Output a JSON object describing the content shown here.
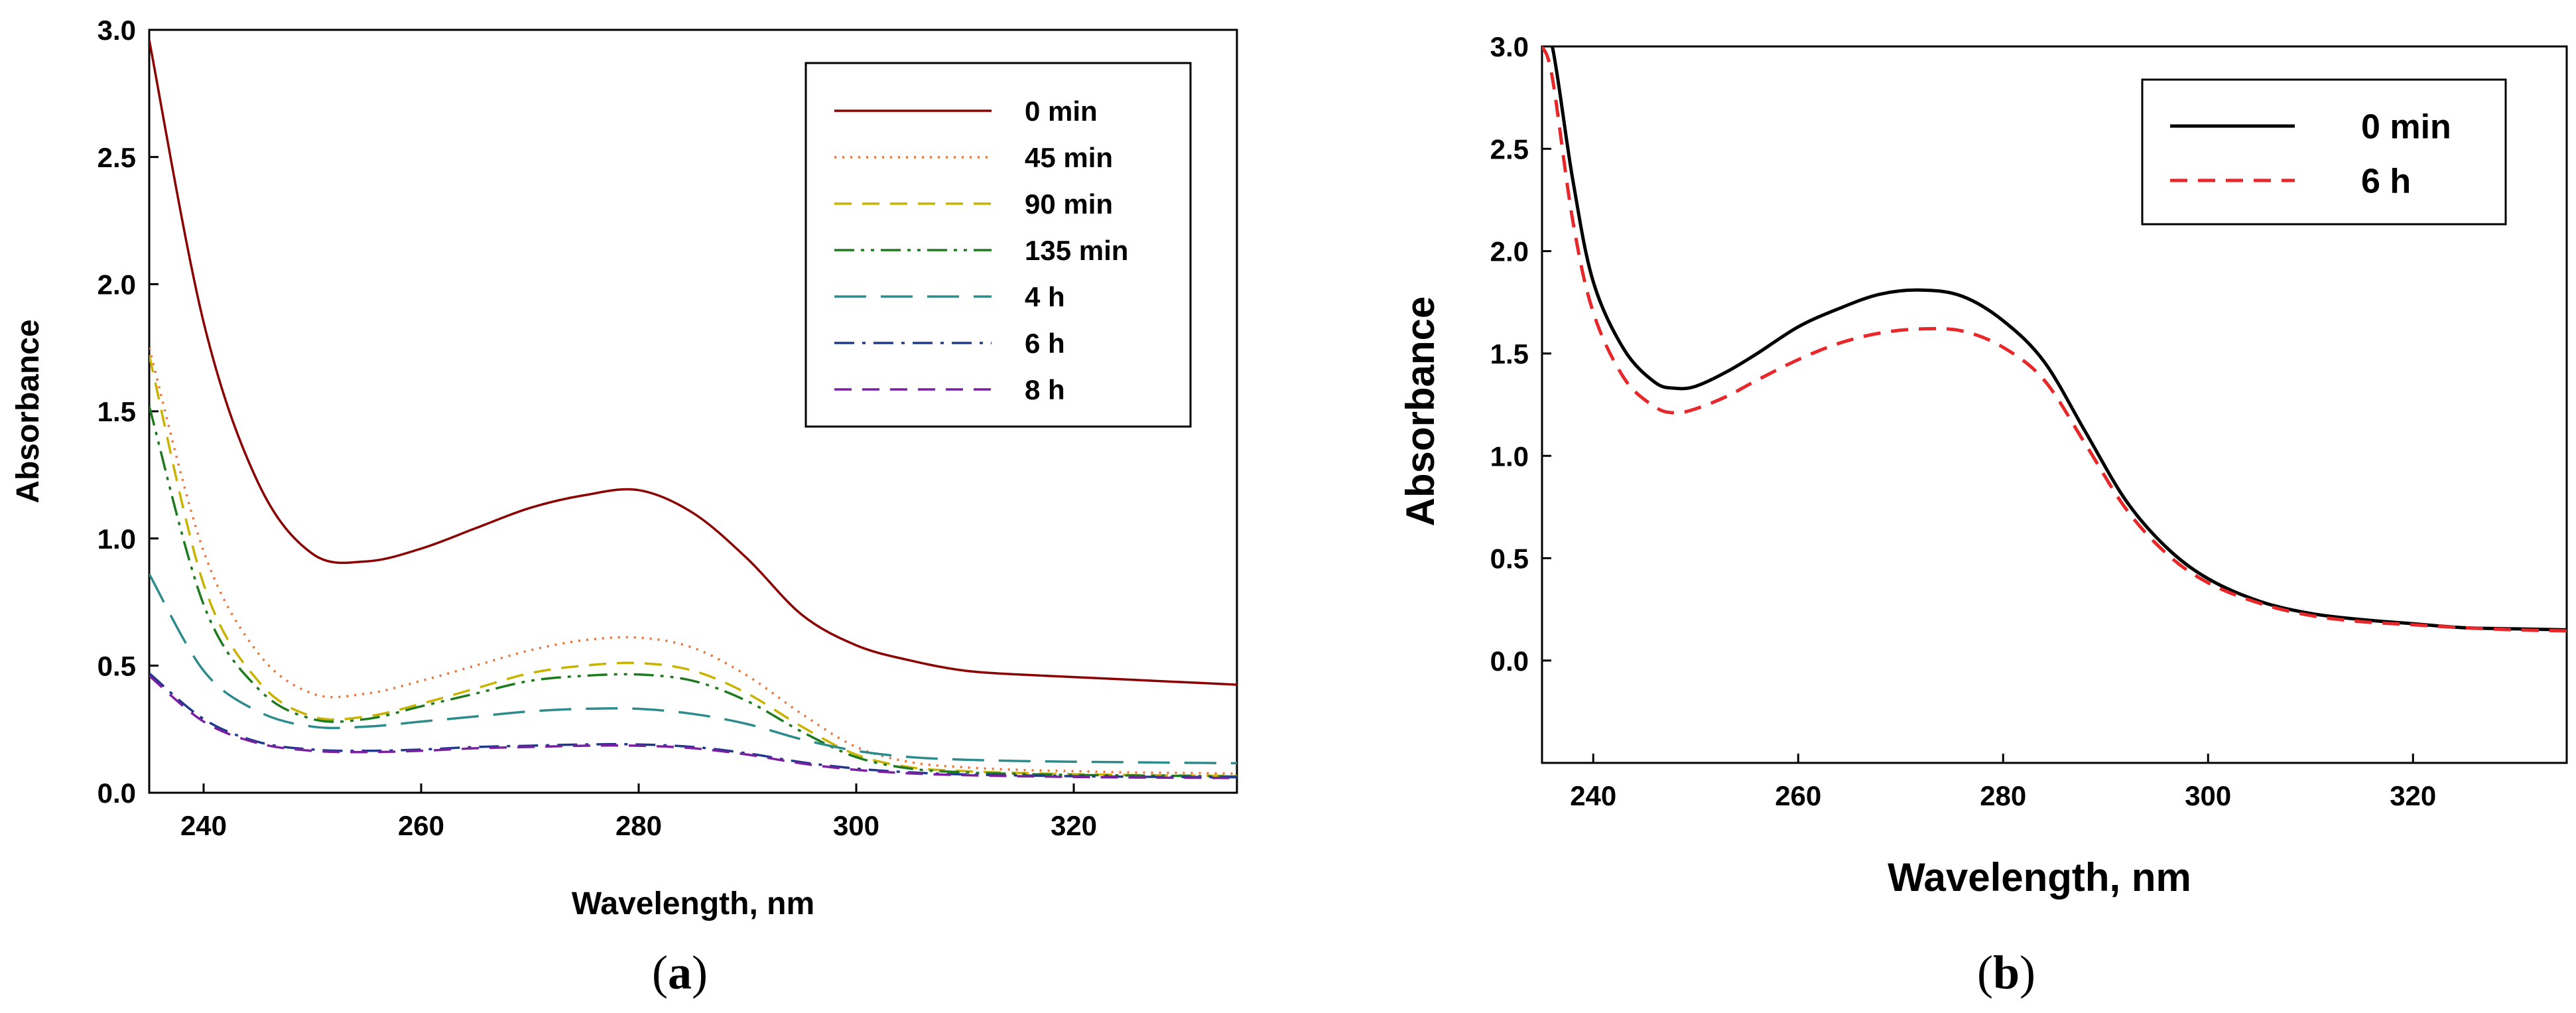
{
  "chart_data": [
    {
      "type": "line",
      "panel_id": "a",
      "panel_label": {
        "open": "(",
        "letter": "a",
        "close": ")"
      },
      "title": "",
      "xlabel": "Wavelength, nm",
      "ylabel": "Absorbance",
      "xlim": [
        235,
        335
      ],
      "ylim": [
        0,
        3.0
      ],
      "x_ticks": [
        240,
        260,
        280,
        300,
        320
      ],
      "y_ticks": [
        0.0,
        0.5,
        1.0,
        1.5,
        2.0,
        2.5,
        3.0
      ],
      "grid": false,
      "legend_position": "top-right",
      "x": [
        235,
        240,
        245,
        250,
        255,
        260,
        265,
        270,
        275,
        280,
        285,
        290,
        295,
        300,
        305,
        310,
        315,
        320,
        325,
        330,
        335
      ],
      "series": [
        {
          "name": "0 min",
          "color": "#8B0000",
          "dash": "solid",
          "values": [
            2.96,
            1.85,
            1.22,
            0.94,
            0.91,
            0.96,
            1.04,
            1.12,
            1.17,
            1.19,
            1.1,
            0.92,
            0.7,
            0.58,
            0.52,
            0.48,
            0.465,
            0.455,
            0.445,
            0.435,
            0.425
          ]
        },
        {
          "name": "45 min",
          "color": "#E8743B",
          "dash": "dotted",
          "values": [
            1.75,
            0.95,
            0.55,
            0.39,
            0.39,
            0.44,
            0.5,
            0.56,
            0.6,
            0.61,
            0.57,
            0.46,
            0.31,
            0.18,
            0.12,
            0.1,
            0.09,
            0.085,
            0.08,
            0.078,
            0.075
          ]
        },
        {
          "name": "90 min",
          "color": "#C8B400",
          "dash": "dashed",
          "values": [
            1.72,
            0.82,
            0.44,
            0.3,
            0.3,
            0.35,
            0.41,
            0.47,
            0.5,
            0.51,
            0.48,
            0.39,
            0.26,
            0.15,
            0.1,
            0.085,
            0.078,
            0.073,
            0.07,
            0.068,
            0.066
          ]
        },
        {
          "name": "135 min",
          "color": "#1E7A1E",
          "dash": "dashdotdot",
          "values": [
            1.52,
            0.74,
            0.41,
            0.29,
            0.29,
            0.34,
            0.39,
            0.44,
            0.46,
            0.465,
            0.44,
            0.36,
            0.24,
            0.14,
            0.095,
            0.08,
            0.074,
            0.07,
            0.068,
            0.066,
            0.064
          ]
        },
        {
          "name": "4 h",
          "color": "#2E8B8B",
          "dash": "longdash",
          "values": [
            0.86,
            0.48,
            0.32,
            0.26,
            0.26,
            0.28,
            0.3,
            0.32,
            0.33,
            0.33,
            0.31,
            0.27,
            0.21,
            0.165,
            0.14,
            0.13,
            0.125,
            0.122,
            0.12,
            0.118,
            0.116
          ]
        },
        {
          "name": "6 h",
          "color": "#1F3A8A",
          "dash": "dashdot",
          "values": [
            0.47,
            0.29,
            0.2,
            0.17,
            0.165,
            0.17,
            0.18,
            0.185,
            0.19,
            0.19,
            0.18,
            0.155,
            0.12,
            0.095,
            0.08,
            0.072,
            0.068,
            0.065,
            0.063,
            0.062,
            0.061
          ]
        },
        {
          "name": "8 h",
          "color": "#7A1FA2",
          "dash": "dashed",
          "values": [
            0.46,
            0.28,
            0.195,
            0.165,
            0.16,
            0.165,
            0.175,
            0.18,
            0.185,
            0.185,
            0.175,
            0.15,
            0.115,
            0.09,
            0.076,
            0.069,
            0.065,
            0.062,
            0.06,
            0.059,
            0.058
          ]
        }
      ]
    },
    {
      "type": "line",
      "panel_id": "b",
      "panel_label": {
        "open": "(",
        "letter": "b",
        "close": ")"
      },
      "title": "",
      "xlabel": "Wavelength, nm",
      "ylabel": "Absorbance",
      "xlim": [
        235,
        335
      ],
      "ylim": [
        -0.5,
        3.0
      ],
      "x_ticks": [
        240,
        260,
        280,
        300,
        320
      ],
      "y_ticks": [
        0.0,
        0.5,
        1.0,
        1.5,
        2.0,
        2.5,
        3.0
      ],
      "grid": false,
      "legend_position": "top-right",
      "x": [
        235,
        236,
        238,
        240,
        243,
        246,
        248,
        250,
        253,
        256,
        260,
        264,
        268,
        272,
        276,
        280,
        284,
        288,
        292,
        296,
        300,
        305,
        310,
        315,
        320,
        325,
        330,
        335
      ],
      "series": [
        {
          "name": "0 min",
          "color": "#000000",
          "dash": "solid",
          "values": [
            3.0,
            3.0,
            2.35,
            1.85,
            1.52,
            1.36,
            1.33,
            1.34,
            1.41,
            1.5,
            1.63,
            1.72,
            1.79,
            1.81,
            1.78,
            1.66,
            1.46,
            1.12,
            0.78,
            0.55,
            0.4,
            0.29,
            0.23,
            0.2,
            0.18,
            0.16,
            0.155,
            0.15
          ]
        },
        {
          "name": "6 h",
          "color": "#E8272A",
          "dash": "dashed",
          "values": [
            3.0,
            2.85,
            2.15,
            1.7,
            1.38,
            1.24,
            1.21,
            1.23,
            1.29,
            1.37,
            1.47,
            1.55,
            1.6,
            1.62,
            1.61,
            1.53,
            1.37,
            1.06,
            0.74,
            0.52,
            0.38,
            0.28,
            0.22,
            0.19,
            0.175,
            0.16,
            0.15,
            0.145
          ]
        }
      ]
    }
  ]
}
